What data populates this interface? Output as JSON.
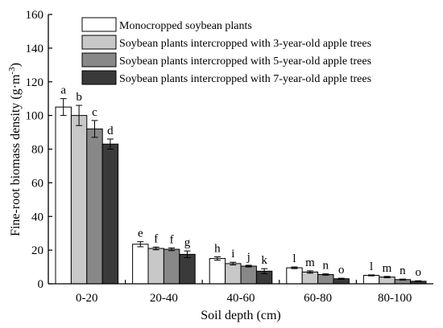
{
  "chart_data": {
    "type": "bar",
    "xlabel": "Soil depth (cm)",
    "ylabel_main": "Fine-root biomass density (g·m",
    "ylabel_sup": "-3",
    "ylabel_tail": ")",
    "ylim": [
      0,
      160
    ],
    "yticks": [
      0,
      20,
      40,
      60,
      80,
      100,
      120,
      140,
      160
    ],
    "grid": false,
    "legend_placement": "top-right",
    "categories": [
      "0-20",
      "20-40",
      "40-60",
      "60-80",
      "80-100"
    ],
    "series": [
      {
        "name": "Monocropped soybean plants",
        "color": "#ffffff",
        "values": [
          105,
          23.5,
          15,
          9.5,
          5
        ],
        "errors": [
          5,
          1.5,
          1,
          0.5,
          0.3
        ],
        "letters": [
          "a",
          "e",
          "h",
          "l",
          "l"
        ]
      },
      {
        "name": "Soybean plants intercropped with 3-year-old apple trees",
        "color": "#c8c8c8",
        "values": [
          100,
          21,
          12,
          7,
          4
        ],
        "errors": [
          6,
          0.8,
          0.8,
          0.7,
          0.4
        ],
        "letters": [
          "b",
          "f",
          "i",
          "m",
          "m"
        ]
      },
      {
        "name": "Soybean plants intercropped with 5-year-old apple trees",
        "color": "#888888",
        "values": [
          92,
          20.5,
          10.5,
          5.5,
          2.5
        ],
        "errors": [
          5,
          0.8,
          0.5,
          0.4,
          0.3
        ],
        "letters": [
          "c",
          "f",
          "j",
          "n",
          "n"
        ]
      },
      {
        "name": "Soybean plants intercropped with 7-year-old apple trees",
        "color": "#3a3a3a",
        "values": [
          83,
          17.5,
          7.5,
          3,
          1.5
        ],
        "errors": [
          3,
          2,
          1.5,
          0.3,
          0.3
        ],
        "letters": [
          "d",
          "g",
          "k",
          "o",
          "o"
        ]
      }
    ]
  }
}
